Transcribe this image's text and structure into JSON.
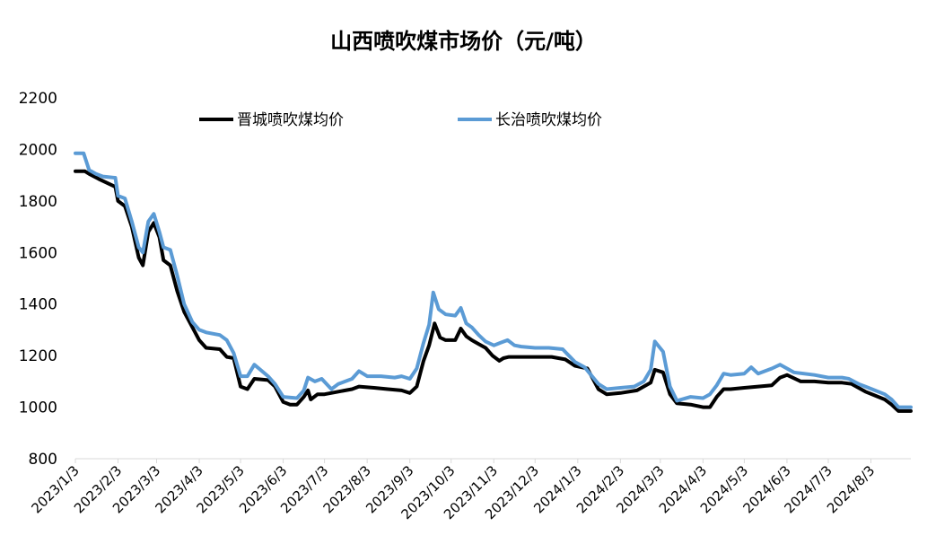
{
  "chart_data": {
    "type": "line",
    "title": "山西喷吹煤市场价（元/吨）",
    "xlabel": "",
    "ylabel": "",
    "ylim": [
      800,
      2200
    ],
    "yticks": [
      800,
      1000,
      1200,
      1400,
      1600,
      1800,
      2000,
      2200
    ],
    "xlim": [
      "2023-01-03",
      "2024-09-01"
    ],
    "xticks": [
      {
        "date": "2023-01-03",
        "label": "2023/1/3"
      },
      {
        "date": "2023-02-03",
        "label": "2023/2/3"
      },
      {
        "date": "2023-03-03",
        "label": "2023/3/3"
      },
      {
        "date": "2023-04-03",
        "label": "2023/4/3"
      },
      {
        "date": "2023-05-03",
        "label": "2023/5/3"
      },
      {
        "date": "2023-06-03",
        "label": "2023/6/3"
      },
      {
        "date": "2023-07-03",
        "label": "2023/7/3"
      },
      {
        "date": "2023-08-03",
        "label": "2023/8/3"
      },
      {
        "date": "2023-09-03",
        "label": "2023/9/3"
      },
      {
        "date": "2023-10-03",
        "label": "2023/10/3"
      },
      {
        "date": "2023-11-03",
        "label": "2023/11/3"
      },
      {
        "date": "2023-12-03",
        "label": "2023/12/3"
      },
      {
        "date": "2024-01-03",
        "label": "2024/1/3"
      },
      {
        "date": "2024-02-03",
        "label": "2024/2/3"
      },
      {
        "date": "2024-03-03",
        "label": "2024/3/3"
      },
      {
        "date": "2024-04-03",
        "label": "2024/4/3"
      },
      {
        "date": "2024-05-03",
        "label": "2024/5/3"
      },
      {
        "date": "2024-06-03",
        "label": "2024/6/3"
      },
      {
        "date": "2024-07-03",
        "label": "2024/7/3"
      },
      {
        "date": "2024-08-03",
        "label": "2024/8/3"
      }
    ],
    "grid": false,
    "legend_position": "top",
    "series": [
      {
        "name": "晋城喷吹煤均价",
        "color": "#000000",
        "points": [
          [
            "2023-01-03",
            1915
          ],
          [
            "2023-01-10",
            1915
          ],
          [
            "2023-01-13",
            1905
          ],
          [
            "2023-01-20",
            1885
          ],
          [
            "2023-01-28",
            1865
          ],
          [
            "2023-02-01",
            1855
          ],
          [
            "2023-02-03",
            1800
          ],
          [
            "2023-02-08",
            1780
          ],
          [
            "2023-02-13",
            1700
          ],
          [
            "2023-02-18",
            1580
          ],
          [
            "2023-02-21",
            1550
          ],
          [
            "2023-02-25",
            1680
          ],
          [
            "2023-03-01",
            1715
          ],
          [
            "2023-03-05",
            1660
          ],
          [
            "2023-03-08",
            1570
          ],
          [
            "2023-03-13",
            1550
          ],
          [
            "2023-03-18",
            1450
          ],
          [
            "2023-03-23",
            1370
          ],
          [
            "2023-03-29",
            1310
          ],
          [
            "2023-04-03",
            1260
          ],
          [
            "2023-04-08",
            1230
          ],
          [
            "2023-04-18",
            1225
          ],
          [
            "2023-04-23",
            1195
          ],
          [
            "2023-04-28",
            1190
          ],
          [
            "2023-05-03",
            1080
          ],
          [
            "2023-05-08",
            1070
          ],
          [
            "2023-05-13",
            1110
          ],
          [
            "2023-05-23",
            1105
          ],
          [
            "2023-05-28",
            1080
          ],
          [
            "2023-06-03",
            1020
          ],
          [
            "2023-06-08",
            1010
          ],
          [
            "2023-06-13",
            1010
          ],
          [
            "2023-06-18",
            1040
          ],
          [
            "2023-06-21",
            1065
          ],
          [
            "2023-06-23",
            1030
          ],
          [
            "2023-06-28",
            1050
          ],
          [
            "2023-07-03",
            1050
          ],
          [
            "2023-07-13",
            1060
          ],
          [
            "2023-07-23",
            1070
          ],
          [
            "2023-07-28",
            1080
          ],
          [
            "2023-08-08",
            1075
          ],
          [
            "2023-08-18",
            1070
          ],
          [
            "2023-08-28",
            1065
          ],
          [
            "2023-09-03",
            1055
          ],
          [
            "2023-09-08",
            1080
          ],
          [
            "2023-09-13",
            1180
          ],
          [
            "2023-09-17",
            1240
          ],
          [
            "2023-09-21",
            1325
          ],
          [
            "2023-09-25",
            1270
          ],
          [
            "2023-09-29",
            1260
          ],
          [
            "2023-10-06",
            1260
          ],
          [
            "2023-10-10",
            1305
          ],
          [
            "2023-10-14",
            1275
          ],
          [
            "2023-10-18",
            1260
          ],
          [
            "2023-10-23",
            1245
          ],
          [
            "2023-10-28",
            1230
          ],
          [
            "2023-11-02",
            1200
          ],
          [
            "2023-11-07",
            1180
          ],
          [
            "2023-11-10",
            1190
          ],
          [
            "2023-11-14",
            1195
          ],
          [
            "2023-11-25",
            1195
          ],
          [
            "2023-12-05",
            1195
          ],
          [
            "2023-12-15",
            1195
          ],
          [
            "2023-12-25",
            1185
          ],
          [
            "2024-01-01",
            1160
          ],
          [
            "2024-01-10",
            1150
          ],
          [
            "2024-01-18",
            1070
          ],
          [
            "2024-01-24",
            1050
          ],
          [
            "2024-02-03",
            1055
          ],
          [
            "2024-02-15",
            1065
          ],
          [
            "2024-02-25",
            1095
          ],
          [
            "2024-02-28",
            1145
          ],
          [
            "2024-03-05",
            1135
          ],
          [
            "2024-03-10",
            1050
          ],
          [
            "2024-03-15",
            1015
          ],
          [
            "2024-03-25",
            1010
          ],
          [
            "2024-04-03",
            1000
          ],
          [
            "2024-04-08",
            1000
          ],
          [
            "2024-04-13",
            1040
          ],
          [
            "2024-04-18",
            1070
          ],
          [
            "2024-04-23",
            1070
          ],
          [
            "2024-05-03",
            1075
          ],
          [
            "2024-05-13",
            1080
          ],
          [
            "2024-05-23",
            1085
          ],
          [
            "2024-05-29",
            1115
          ],
          [
            "2024-06-03",
            1125
          ],
          [
            "2024-06-13",
            1100
          ],
          [
            "2024-06-23",
            1100
          ],
          [
            "2024-07-03",
            1095
          ],
          [
            "2024-07-13",
            1095
          ],
          [
            "2024-07-20",
            1090
          ],
          [
            "2024-07-25",
            1075
          ],
          [
            "2024-07-30",
            1060
          ],
          [
            "2024-08-06",
            1045
          ],
          [
            "2024-08-13",
            1030
          ],
          [
            "2024-08-18",
            1010
          ],
          [
            "2024-08-23",
            985
          ],
          [
            "2024-09-01",
            985
          ]
        ]
      },
      {
        "name": "长治喷吹煤均价",
        "color": "#5b9bd5",
        "points": [
          [
            "2023-01-03",
            1985
          ],
          [
            "2023-01-09",
            1985
          ],
          [
            "2023-01-13",
            1920
          ],
          [
            "2023-01-18",
            1905
          ],
          [
            "2023-01-23",
            1895
          ],
          [
            "2023-02-01",
            1890
          ],
          [
            "2023-02-03",
            1820
          ],
          [
            "2023-02-08",
            1810
          ],
          [
            "2023-02-13",
            1720
          ],
          [
            "2023-02-18",
            1620
          ],
          [
            "2023-02-21",
            1600
          ],
          [
            "2023-02-25",
            1720
          ],
          [
            "2023-03-01",
            1750
          ],
          [
            "2023-03-05",
            1680
          ],
          [
            "2023-03-08",
            1620
          ],
          [
            "2023-03-13",
            1610
          ],
          [
            "2023-03-18",
            1510
          ],
          [
            "2023-03-23",
            1400
          ],
          [
            "2023-03-29",
            1330
          ],
          [
            "2023-04-03",
            1300
          ],
          [
            "2023-04-08",
            1290
          ],
          [
            "2023-04-18",
            1280
          ],
          [
            "2023-04-23",
            1260
          ],
          [
            "2023-04-28",
            1210
          ],
          [
            "2023-05-03",
            1120
          ],
          [
            "2023-05-08",
            1120
          ],
          [
            "2023-05-13",
            1165
          ],
          [
            "2023-05-23",
            1120
          ],
          [
            "2023-05-28",
            1090
          ],
          [
            "2023-06-03",
            1040
          ],
          [
            "2023-06-13",
            1035
          ],
          [
            "2023-06-18",
            1065
          ],
          [
            "2023-06-21",
            1115
          ],
          [
            "2023-06-26",
            1100
          ],
          [
            "2023-07-01",
            1110
          ],
          [
            "2023-07-08",
            1070
          ],
          [
            "2023-07-13",
            1090
          ],
          [
            "2023-07-23",
            1110
          ],
          [
            "2023-07-28",
            1140
          ],
          [
            "2023-08-03",
            1120
          ],
          [
            "2023-08-13",
            1120
          ],
          [
            "2023-08-23",
            1115
          ],
          [
            "2023-08-28",
            1120
          ],
          [
            "2023-09-03",
            1110
          ],
          [
            "2023-09-08",
            1150
          ],
          [
            "2023-09-13",
            1250
          ],
          [
            "2023-09-17",
            1320
          ],
          [
            "2023-09-20",
            1445
          ],
          [
            "2023-09-24",
            1380
          ],
          [
            "2023-09-29",
            1360
          ],
          [
            "2023-10-06",
            1355
          ],
          [
            "2023-10-10",
            1385
          ],
          [
            "2023-10-14",
            1325
          ],
          [
            "2023-10-18",
            1310
          ],
          [
            "2023-10-23",
            1280
          ],
          [
            "2023-10-28",
            1255
          ],
          [
            "2023-11-03",
            1240
          ],
          [
            "2023-11-08",
            1250
          ],
          [
            "2023-11-13",
            1260
          ],
          [
            "2023-11-18",
            1240
          ],
          [
            "2023-11-23",
            1235
          ],
          [
            "2023-12-03",
            1230
          ],
          [
            "2023-12-13",
            1230
          ],
          [
            "2023-12-23",
            1225
          ],
          [
            "2024-01-01",
            1175
          ],
          [
            "2024-01-08",
            1155
          ],
          [
            "2024-01-18",
            1090
          ],
          [
            "2024-01-24",
            1070
          ],
          [
            "2024-02-03",
            1075
          ],
          [
            "2024-02-13",
            1080
          ],
          [
            "2024-02-20",
            1100
          ],
          [
            "2024-02-25",
            1145
          ],
          [
            "2024-02-28",
            1255
          ],
          [
            "2024-03-05",
            1215
          ],
          [
            "2024-03-10",
            1080
          ],
          [
            "2024-03-15",
            1025
          ],
          [
            "2024-03-25",
            1040
          ],
          [
            "2024-04-03",
            1035
          ],
          [
            "2024-04-08",
            1050
          ],
          [
            "2024-04-13",
            1085
          ],
          [
            "2024-04-18",
            1130
          ],
          [
            "2024-04-23",
            1125
          ],
          [
            "2024-05-03",
            1130
          ],
          [
            "2024-05-08",
            1155
          ],
          [
            "2024-05-13",
            1130
          ],
          [
            "2024-05-23",
            1150
          ],
          [
            "2024-05-29",
            1165
          ],
          [
            "2024-06-03",
            1150
          ],
          [
            "2024-06-08",
            1135
          ],
          [
            "2024-06-23",
            1125
          ],
          [
            "2024-07-03",
            1115
          ],
          [
            "2024-07-13",
            1115
          ],
          [
            "2024-07-18",
            1110
          ],
          [
            "2024-07-25",
            1090
          ],
          [
            "2024-07-30",
            1080
          ],
          [
            "2024-08-06",
            1065
          ],
          [
            "2024-08-13",
            1050
          ],
          [
            "2024-08-18",
            1030
          ],
          [
            "2024-08-23",
            1000
          ],
          [
            "2024-09-01",
            1000
          ]
        ]
      }
    ]
  }
}
